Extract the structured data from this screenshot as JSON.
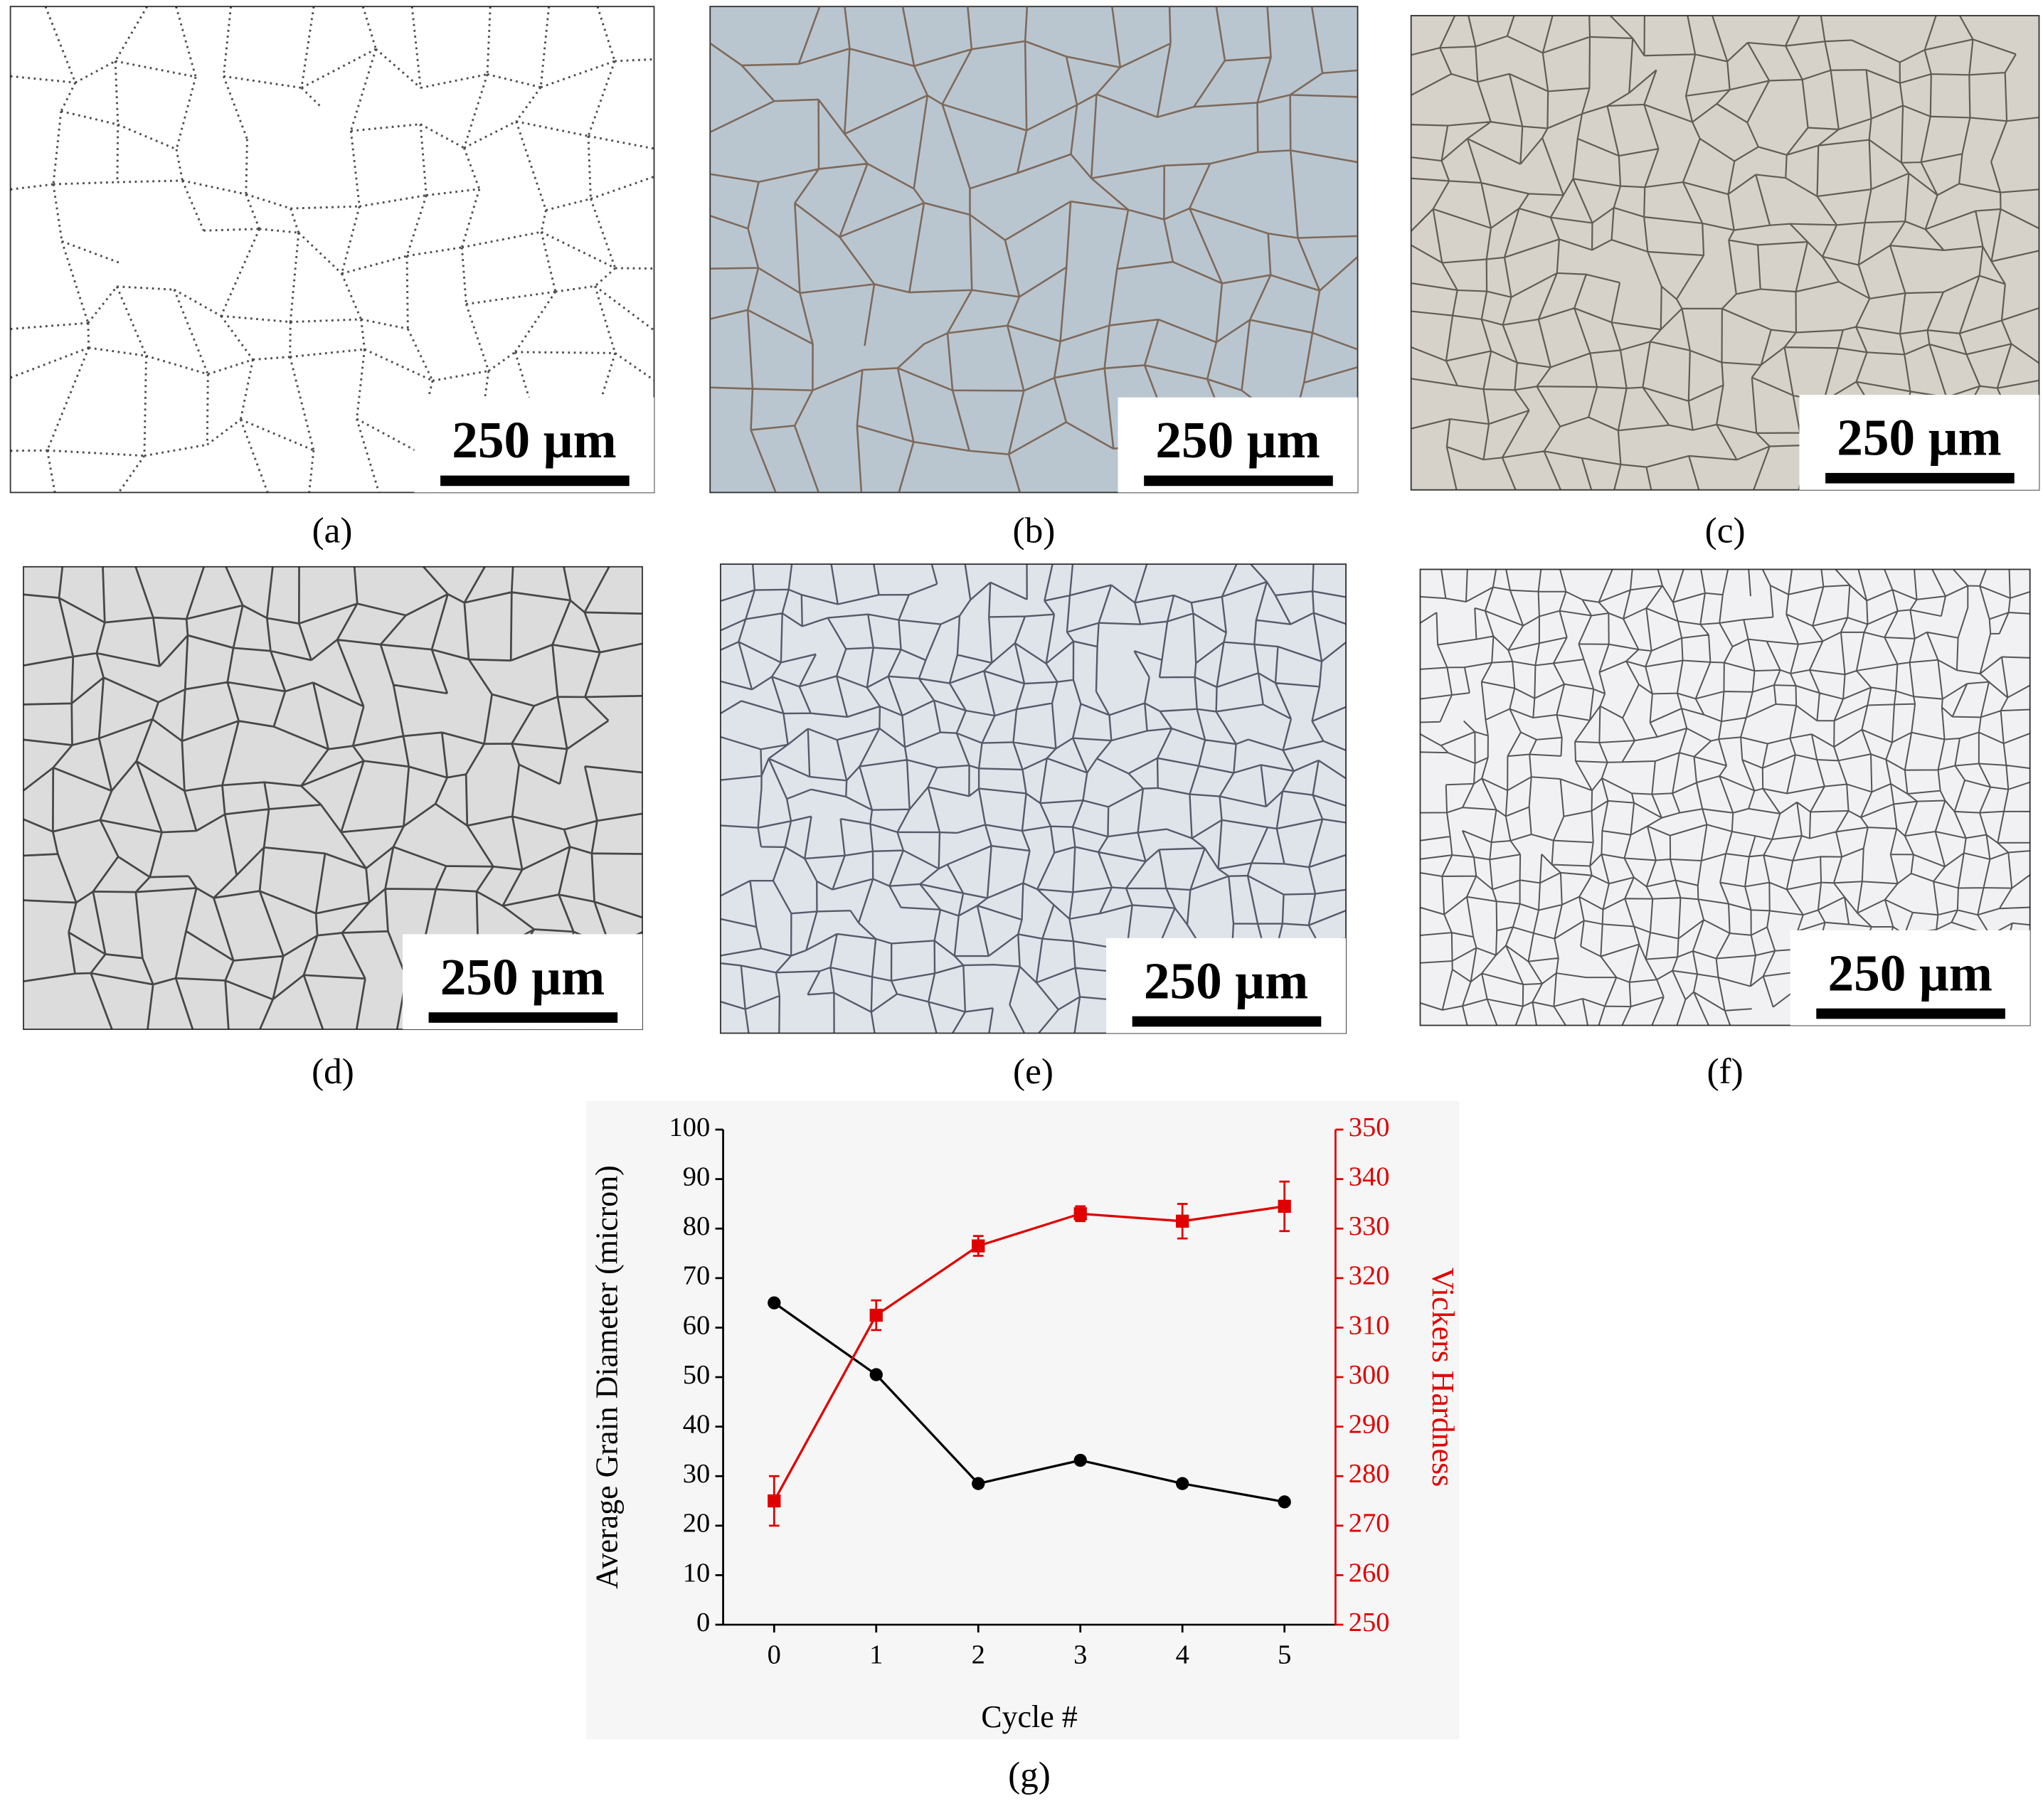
{
  "panels": [
    {
      "label": "(a)",
      "scale_bar": "250 µm"
    },
    {
      "label": "(b)",
      "scale_bar": "250 µm"
    },
    {
      "label": "(c)",
      "scale_bar": "250 µm"
    },
    {
      "label": "(d)",
      "scale_bar": "250 µm"
    },
    {
      "label": "(e)",
      "scale_bar": "250 µm"
    },
    {
      "label": "(f)",
      "scale_bar": "250 µm"
    }
  ],
  "chart_label": "(g)",
  "chart_data": {
    "type": "line",
    "xlabel": "Cycle #",
    "ylabel": "Average Grain Diameter (micron)",
    "y2label": "Vickers Hardness",
    "x": [
      0,
      1,
      2,
      3,
      4,
      5
    ],
    "xlim": [
      -0.5,
      5.5
    ],
    "xticks": [
      0,
      1,
      2,
      3,
      4,
      5
    ],
    "ylim": [
      0,
      100
    ],
    "yticks": [
      0,
      10,
      20,
      30,
      40,
      50,
      60,
      70,
      80,
      90,
      100
    ],
    "y2lim": [
      250,
      350
    ],
    "y2ticks": [
      250,
      260,
      270,
      280,
      290,
      300,
      310,
      320,
      330,
      340,
      350
    ],
    "series": [
      {
        "name": "Average Grain Diameter",
        "color": "#000000",
        "marker": "circle",
        "values": [
          65,
          50.5,
          28.5,
          33.2,
          28.5,
          24.8
        ]
      },
      {
        "name": "Vickers Hardness",
        "color": "#e00000",
        "marker": "square",
        "axis": "y2",
        "values": [
          275,
          312.5,
          326.5,
          333,
          331.5,
          334.5
        ],
        "errors": [
          5,
          3,
          2,
          1.5,
          3.5,
          5
        ]
      }
    ]
  }
}
